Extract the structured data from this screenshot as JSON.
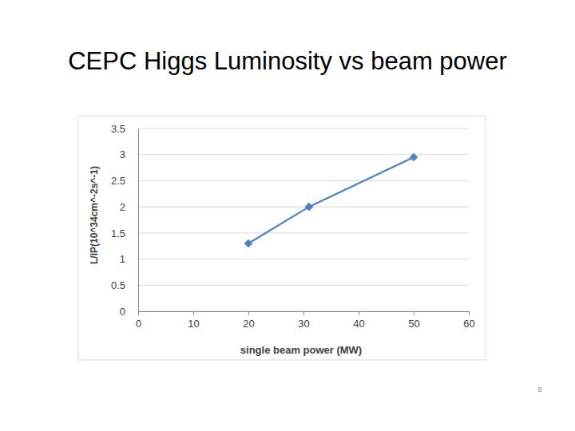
{
  "chart_data": {
    "type": "line",
    "title": "CEPC Higgs Luminosity vs beam power",
    "x_label": "single beam power (MW)",
    "y_label": "L/IP(10^34cm^-2s^-1)",
    "x": [
      20,
      31,
      50
    ],
    "values": [
      1.3,
      2.0,
      2.95
    ],
    "color": "#4f81bd",
    "marker": "diamond",
    "line_style": "solid",
    "xlim": [
      0,
      60
    ],
    "xticks": [
      0,
      10,
      20,
      30,
      40,
      50,
      60
    ],
    "ylim": [
      0,
      3.5
    ],
    "yticks": [
      0,
      0.5,
      1,
      1.5,
      2,
      2.5,
      3,
      3.5
    ],
    "grid": true
  },
  "page_number": "8"
}
